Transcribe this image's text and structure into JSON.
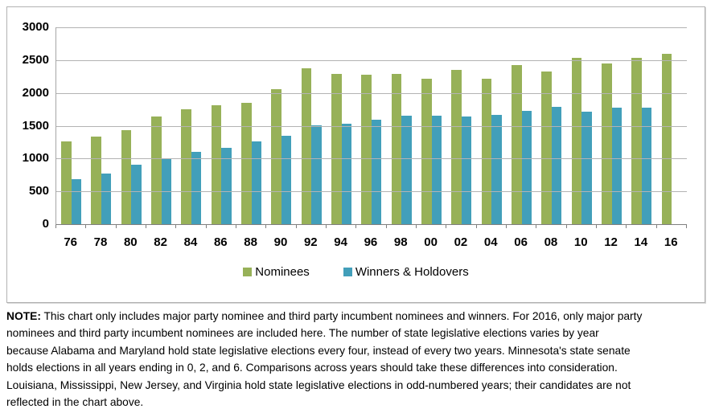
{
  "chart_data": {
    "type": "bar",
    "title": "",
    "categories": [
      "76",
      "78",
      "80",
      "82",
      "84",
      "86",
      "88",
      "90",
      "92",
      "94",
      "96",
      "98",
      "00",
      "02",
      "04",
      "06",
      "08",
      "10",
      "12",
      "14",
      "16"
    ],
    "series": [
      {
        "name": "Nominees",
        "color": "#97b158",
        "values": [
          1260,
          1340,
          1430,
          1640,
          1750,
          1810,
          1850,
          2060,
          2380,
          2290,
          2280,
          2290,
          2220,
          2350,
          2220,
          2430,
          2330,
          2540,
          2450,
          2530,
          2600
        ]
      },
      {
        "name": "Winners & Holdovers",
        "color": "#429fba",
        "values": [
          680,
          770,
          910,
          1000,
          1100,
          1160,
          1260,
          1350,
          1510,
          1530,
          1590,
          1650,
          1650,
          1640,
          1660,
          1730,
          1790,
          1720,
          1780,
          1780,
          null
        ]
      }
    ],
    "xlabel": "",
    "ylabel": "",
    "ylim": [
      0,
      3000
    ],
    "ytick_step": 500,
    "grid": true,
    "legend_position": "bottom"
  },
  "note": {
    "label": "NOTE:",
    "lines": [
      " This chart only includes major party nominee and third party incumbent nominees and winners. For 2016, only major party",
      "nominees and third party incumbent nominees are included here. The number of state legislative elections varies by year",
      "because Alabama and Maryland hold state legislative elections every four, instead of every two years. Minnesota's state senate",
      "holds elections in all years ending in 0, 2, and 6. Comparisons across years should take these differences into consideration.",
      "Louisiana, Mississippi, New Jersey, and Virginia hold state legislative elections in odd-numbered years; their candidates are not",
      "reflected in the chart above."
    ]
  }
}
